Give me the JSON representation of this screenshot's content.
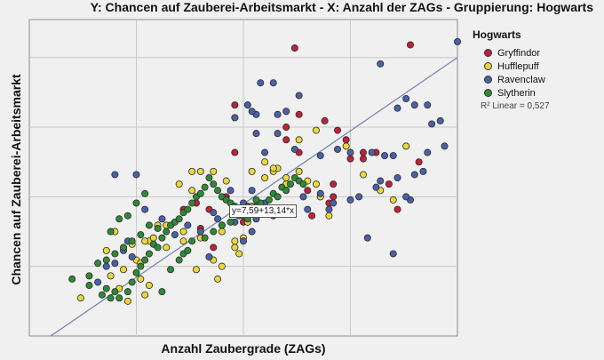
{
  "chart_data": {
    "type": "scatter",
    "title": "Y: Chancen auf Zauberei-Arbeitsmarkt - X: Anzahl der ZAGs - Gruppierung: Hogwarts",
    "xlabel": "Anzahl Zaubergrade (ZAGs)",
    "ylabel": "Chancen auf Zauberei-Arbeitsmarkt",
    "xlim": [
      0,
      100
    ],
    "ylim": [
      0,
      100
    ],
    "grid": true,
    "legend": {
      "title": "Hogwarts",
      "placement": "right"
    },
    "fit_line": {
      "label": "y=7,59+13,14*x",
      "r2_label": "R² Linear = 0,527",
      "color": "#7080b0"
    },
    "series": [
      {
        "name": "Gryffindor",
        "color": "#c0203a",
        "points": [
          [
            89,
            92
          ],
          [
            62,
            91
          ],
          [
            48,
            73
          ],
          [
            60,
            66
          ],
          [
            72,
            65
          ],
          [
            63,
            58
          ],
          [
            75,
            56
          ],
          [
            78,
            56
          ],
          [
            81,
            58
          ],
          [
            91,
            55
          ],
          [
            84,
            48
          ],
          [
            86,
            40
          ],
          [
            78,
            58
          ],
          [
            63,
            70
          ],
          [
            69,
            68
          ],
          [
            74,
            62
          ],
          [
            48,
            58
          ],
          [
            60,
            62
          ],
          [
            65,
            46
          ],
          [
            70,
            42
          ],
          [
            71,
            48
          ],
          [
            71,
            44
          ],
          [
            66,
            38
          ],
          [
            50,
            36
          ],
          [
            46,
            44
          ],
          [
            42,
            40
          ],
          [
            45,
            35
          ],
          [
            40,
            34
          ],
          [
            39,
            42
          ],
          [
            36,
            40
          ],
          [
            43,
            28
          ]
        ]
      },
      {
        "name": "Hufflepuff",
        "color": "#e8d83a",
        "points": [
          [
            12,
            12
          ],
          [
            28,
            30
          ],
          [
            35,
            48
          ],
          [
            38,
            46
          ],
          [
            38,
            52
          ],
          [
            40,
            52
          ],
          [
            52,
            52
          ],
          [
            60,
            48
          ],
          [
            63,
            52
          ],
          [
            65,
            49
          ],
          [
            70,
            38
          ],
          [
            68,
            44
          ],
          [
            67,
            48
          ],
          [
            57,
            52
          ],
          [
            58,
            53
          ],
          [
            55,
            50
          ],
          [
            52,
            41
          ],
          [
            51,
            36
          ],
          [
            48,
            30
          ],
          [
            48,
            28
          ],
          [
            45,
            22
          ],
          [
            43,
            24
          ],
          [
            39,
            21
          ],
          [
            40,
            31
          ],
          [
            36,
            33
          ],
          [
            32,
            35
          ],
          [
            29,
            31
          ],
          [
            25,
            24
          ],
          [
            26,
            18
          ],
          [
            27,
            13
          ],
          [
            28,
            16
          ],
          [
            27,
            30
          ],
          [
            24,
            29
          ],
          [
            21,
            15
          ],
          [
            19,
            19
          ],
          [
            18,
            27
          ],
          [
            20,
            33
          ],
          [
            30,
            35
          ],
          [
            32,
            28
          ],
          [
            36,
            30
          ],
          [
            43,
            52
          ],
          [
            46,
            49
          ],
          [
            55,
            55
          ],
          [
            57,
            53
          ],
          [
            63,
            62
          ],
          [
            67,
            65
          ],
          [
            74,
            60
          ],
          [
            78,
            51
          ],
          [
            82,
            46
          ],
          [
            85,
            43
          ],
          [
            88,
            60
          ],
          [
            58,
            40
          ],
          [
            60,
            50
          ],
          [
            45,
            33
          ],
          [
            50,
            31
          ],
          [
            49,
            26
          ],
          [
            44,
            18
          ],
          [
            23,
            11
          ],
          [
            22,
            21
          ],
          [
            26,
            23
          ]
        ]
      },
      {
        "name": "Ravenclaw",
        "color": "#4a60a8",
        "points": [
          [
            100,
            93
          ],
          [
            82,
            86
          ],
          [
            57,
            80
          ],
          [
            54,
            80
          ],
          [
            63,
            76
          ],
          [
            60,
            71
          ],
          [
            58,
            70
          ],
          [
            53,
            70
          ],
          [
            52,
            71
          ],
          [
            51,
            73
          ],
          [
            48,
            69
          ],
          [
            53,
            64
          ],
          [
            58,
            64
          ],
          [
            55,
            58
          ],
          [
            62,
            59
          ],
          [
            68,
            57
          ],
          [
            72,
            59
          ],
          [
            75,
            58
          ],
          [
            80,
            58
          ],
          [
            83,
            57
          ],
          [
            86,
            72
          ],
          [
            88,
            75
          ],
          [
            90,
            73
          ],
          [
            93,
            73
          ],
          [
            96,
            68
          ],
          [
            97,
            60
          ],
          [
            94,
            67
          ],
          [
            92,
            52
          ],
          [
            90,
            51
          ],
          [
            89,
            43
          ],
          [
            88,
            44
          ],
          [
            86,
            50
          ],
          [
            81,
            47
          ],
          [
            75,
            43
          ],
          [
            71,
            42
          ],
          [
            68,
            45
          ],
          [
            65,
            40
          ],
          [
            61,
            39
          ],
          [
            59,
            40
          ],
          [
            53,
            37
          ],
          [
            52,
            33
          ],
          [
            50,
            30
          ],
          [
            48,
            36
          ],
          [
            43,
            39
          ],
          [
            44,
            37
          ],
          [
            40,
            33
          ],
          [
            37,
            35
          ],
          [
            34,
            32
          ],
          [
            31,
            37
          ],
          [
            27,
            40
          ],
          [
            24,
            25
          ],
          [
            23,
            30
          ],
          [
            22,
            27
          ],
          [
            20,
            23
          ],
          [
            18,
            22
          ],
          [
            16,
            17
          ],
          [
            25,
            51
          ],
          [
            20,
            51
          ],
          [
            42,
            25
          ],
          [
            52,
            46
          ],
          [
            55,
            42
          ],
          [
            64,
            44
          ],
          [
            70,
            40
          ],
          [
            77,
            44
          ],
          [
            82,
            49
          ],
          [
            85,
            57
          ],
          [
            79,
            31
          ],
          [
            85,
            26
          ],
          [
            93,
            58
          ],
          [
            57,
            38
          ],
          [
            50,
            42
          ],
          [
            47,
            46
          ]
        ]
      },
      {
        "name": "Slytherin",
        "color": "#2e8a35",
        "points": [
          [
            16,
            23
          ],
          [
            14,
            19
          ],
          [
            14,
            16
          ],
          [
            17,
            13
          ],
          [
            18,
            15
          ],
          [
            19,
            12
          ],
          [
            20,
            14
          ],
          [
            21,
            12
          ],
          [
            23,
            14
          ],
          [
            24,
            17
          ],
          [
            25,
            20
          ],
          [
            26,
            22
          ],
          [
            27,
            24
          ],
          [
            28,
            26
          ],
          [
            29,
            29
          ],
          [
            30,
            28
          ],
          [
            31,
            31
          ],
          [
            32,
            33
          ],
          [
            33,
            35
          ],
          [
            34,
            36
          ],
          [
            35,
            37
          ],
          [
            36,
            39
          ],
          [
            37,
            40
          ],
          [
            38,
            42
          ],
          [
            39,
            44
          ],
          [
            40,
            45
          ],
          [
            41,
            47
          ],
          [
            42,
            50
          ],
          [
            43,
            48
          ],
          [
            44,
            46
          ],
          [
            45,
            44
          ],
          [
            46,
            43
          ],
          [
            47,
            42
          ],
          [
            48,
            41
          ],
          [
            49,
            40
          ],
          [
            50,
            38
          ],
          [
            51,
            37
          ],
          [
            52,
            39
          ],
          [
            53,
            41
          ],
          [
            54,
            42
          ],
          [
            55,
            40
          ],
          [
            56,
            43
          ],
          [
            57,
            45
          ],
          [
            58,
            44
          ],
          [
            59,
            47
          ],
          [
            60,
            46
          ],
          [
            61,
            48
          ],
          [
            62,
            50
          ],
          [
            63,
            49
          ],
          [
            64,
            48
          ],
          [
            31,
            14
          ],
          [
            33,
            21
          ],
          [
            35,
            24
          ],
          [
            36,
            26
          ],
          [
            37,
            27
          ],
          [
            38,
            30
          ],
          [
            24,
            30
          ],
          [
            26,
            32
          ],
          [
            28,
            35
          ],
          [
            30,
            34
          ],
          [
            22,
            28
          ],
          [
            20,
            26
          ],
          [
            18,
            24
          ],
          [
            19,
            33
          ],
          [
            21,
            37
          ],
          [
            23,
            38
          ],
          [
            25,
            42
          ],
          [
            27,
            45
          ],
          [
            10,
            18
          ],
          [
            41,
            31
          ],
          [
            43,
            33
          ],
          [
            45,
            35
          ],
          [
            47,
            36
          ],
          [
            49,
            38
          ],
          [
            51,
            41
          ],
          [
            53,
            43
          ]
        ]
      }
    ]
  }
}
